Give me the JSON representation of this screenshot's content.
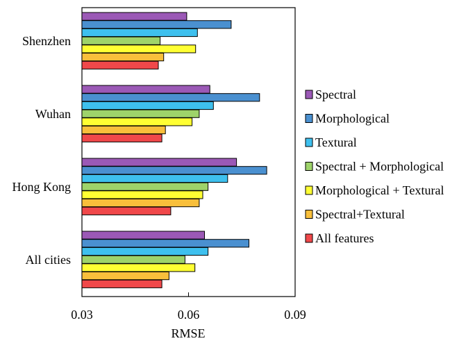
{
  "chart_data": {
    "type": "bar",
    "orientation": "horizontal",
    "title": "",
    "xlabel": "RMSE",
    "ylabel": "",
    "xlim": [
      0.03,
      0.09
    ],
    "xticks": [
      "0.03",
      "0.06",
      "0.09"
    ],
    "categories": [
      "Shenzhen",
      "Wuhan",
      "Hong Kong",
      "All cities"
    ],
    "legend_position": "right",
    "grid": false,
    "series": [
      {
        "name": "Spectral",
        "color": "#9b59b6",
        "values": [
          0.0595,
          0.066,
          0.0735,
          0.0645
        ]
      },
      {
        "name": "Morphological",
        "color": "#4a90d0",
        "values": [
          0.072,
          0.08,
          0.082,
          0.077
        ]
      },
      {
        "name": "Textural",
        "color": "#3ec0ee",
        "values": [
          0.0625,
          0.067,
          0.071,
          0.0655
        ]
      },
      {
        "name": "Spectral + Morphological",
        "color": "#9ed36a",
        "values": [
          0.052,
          0.063,
          0.0655,
          0.059
        ]
      },
      {
        "name": "Morphological + Textural",
        "color": "#ffff33",
        "values": [
          0.062,
          0.061,
          0.064,
          0.0618
        ]
      },
      {
        "name": "Spectral+Textural",
        "color": "#f9bf3b",
        "values": [
          0.053,
          0.0535,
          0.063,
          0.0545
        ]
      },
      {
        "name": "All features",
        "color": "#f0484a",
        "values": [
          0.0515,
          0.0525,
          0.055,
          0.0525
        ]
      }
    ]
  }
}
